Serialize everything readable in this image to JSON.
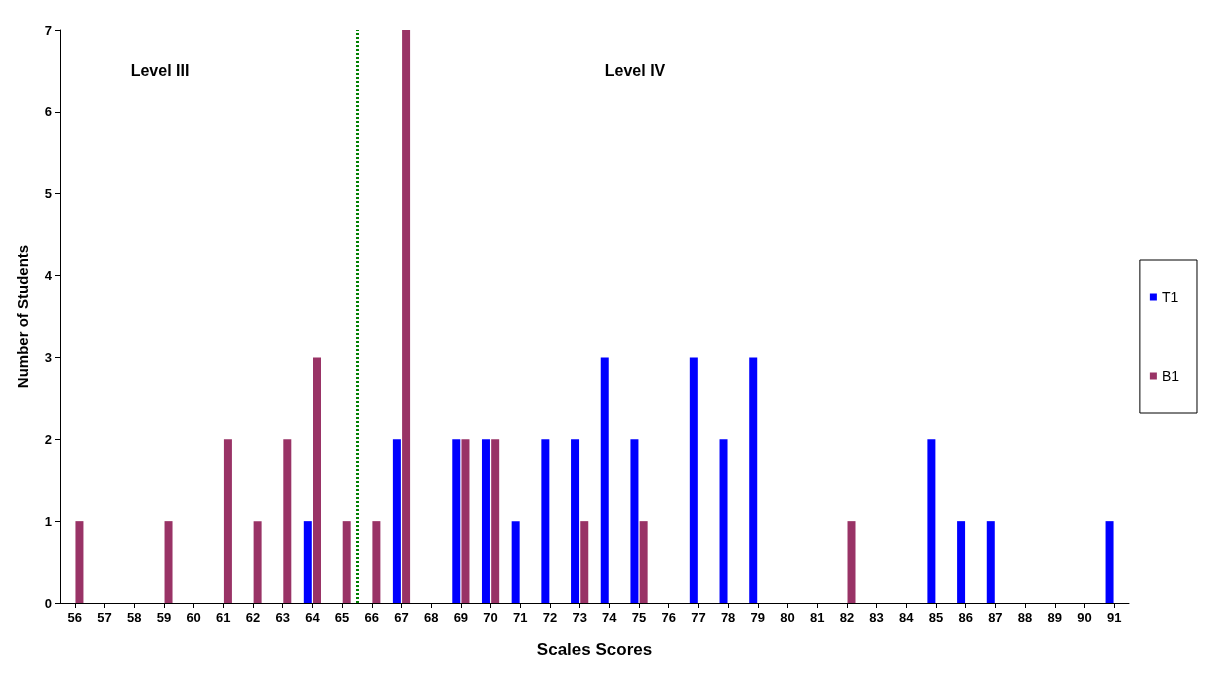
{
  "chart_data": {
    "type": "bar",
    "xlabel": "Scales Scores",
    "ylabel": "Number of Students",
    "x": [
      56,
      57,
      58,
      59,
      60,
      61,
      62,
      63,
      64,
      65,
      66,
      67,
      68,
      69,
      70,
      71,
      72,
      73,
      74,
      75,
      76,
      77,
      78,
      79,
      80,
      81,
      82,
      83,
      84,
      85,
      86,
      87,
      88,
      89,
      90,
      91
    ],
    "series": [
      {
        "name": "T1",
        "color": "#0000ff",
        "values": [
          0,
          0,
          0,
          0,
          0,
          0,
          0,
          0,
          1,
          0,
          0,
          2,
          0,
          2,
          2,
          1,
          2,
          2,
          3,
          2,
          0,
          3,
          2,
          3,
          0,
          0,
          0,
          0,
          0,
          2,
          1,
          1,
          0,
          0,
          0,
          1
        ]
      },
      {
        "name": "B1",
        "color": "#993366",
        "values": [
          1,
          0,
          0,
          1,
          0,
          2,
          1,
          2,
          3,
          1,
          1,
          7,
          0,
          2,
          2,
          0,
          0,
          1,
          0,
          1,
          0,
          0,
          0,
          0,
          0,
          0,
          1,
          0,
          0,
          0,
          0,
          0,
          0,
          0,
          0,
          0
        ]
      }
    ],
    "xlim": [
      55.5,
      91.5
    ],
    "xticks": [
      56,
      57,
      58,
      59,
      60,
      61,
      62,
      63,
      64,
      65,
      66,
      67,
      68,
      69,
      70,
      71,
      72,
      73,
      74,
      75,
      76,
      77,
      78,
      79,
      80,
      81,
      82,
      83,
      84,
      85,
      86,
      87,
      88,
      89,
      90,
      91
    ],
    "ylim": [
      0,
      7
    ],
    "yticks": [
      0,
      1,
      2,
      3,
      4,
      5,
      6,
      7
    ],
    "ref_lines": [
      {
        "axis": "x",
        "value": 65.5,
        "color": "#008000",
        "line_style": "dotted"
      }
    ],
    "annotations": [
      "Level III",
      "Level IV"
    ],
    "grid": false,
    "legend": "right"
  }
}
